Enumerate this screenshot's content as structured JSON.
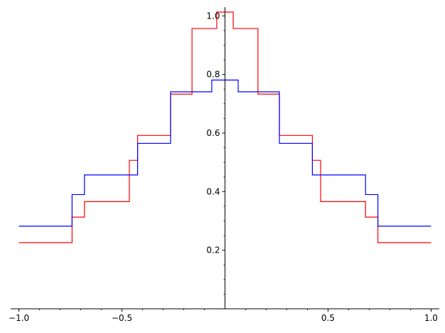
{
  "chart_data": {
    "type": "line",
    "step": true,
    "title": "",
    "xlabel": "",
    "ylabel": "",
    "xlim": [
      -1.04,
      1.04
    ],
    "ylim": [
      0,
      1.03
    ],
    "axes_cross_at": [
      0,
      0
    ],
    "grid": false,
    "legend": "none",
    "x_ticks": [
      {
        "value": -1.0,
        "label": "−1.0"
      },
      {
        "value": -0.5,
        "label": "−0.5"
      },
      {
        "value": 0.5,
        "label": "0.5"
      },
      {
        "value": 1.0,
        "label": "1.0"
      }
    ],
    "x_minor_step": 0.1,
    "y_ticks": [
      {
        "value": 0.2,
        "label": "0.2"
      },
      {
        "value": 0.4,
        "label": "0.4"
      },
      {
        "value": 0.6,
        "label": "0.6"
      },
      {
        "value": 0.8,
        "label": "0.8"
      },
      {
        "value": 1.0,
        "label": "1.0"
      }
    ],
    "y_minor_step": 0.05,
    "series": [
      {
        "color": "#ff0000",
        "x": [
          -1.0,
          -0.742,
          -0.742,
          -0.682,
          -0.682,
          -0.464,
          -0.464,
          -0.424,
          -0.424,
          -0.264,
          -0.264,
          -0.16,
          -0.16,
          -0.04,
          -0.04,
          0.04,
          0.04,
          0.16,
          0.16,
          0.264,
          0.264,
          0.424,
          0.424,
          0.464,
          0.464,
          0.682,
          0.682,
          0.742,
          0.742,
          1.0
        ],
        "y": [
          0.226,
          0.226,
          0.313,
          0.313,
          0.366,
          0.366,
          0.507,
          0.507,
          0.592,
          0.592,
          0.733,
          0.733,
          0.957,
          0.957,
          1.013,
          1.013,
          0.957,
          0.957,
          0.733,
          0.733,
          0.592,
          0.592,
          0.507,
          0.507,
          0.366,
          0.366,
          0.313,
          0.313,
          0.226,
          0.226
        ]
      },
      {
        "color": "#0000ff",
        "x": [
          -1.0,
          -0.742,
          -0.742,
          -0.682,
          -0.682,
          -0.424,
          -0.424,
          -0.264,
          -0.264,
          -0.064,
          -0.064,
          0.064,
          0.064,
          0.264,
          0.264,
          0.424,
          0.424,
          0.682,
          0.682,
          0.742,
          0.742,
          1.0
        ],
        "y": [
          0.282,
          0.282,
          0.39,
          0.39,
          0.457,
          0.457,
          0.565,
          0.565,
          0.741,
          0.741,
          0.781,
          0.781,
          0.741,
          0.741,
          0.565,
          0.565,
          0.457,
          0.457,
          0.39,
          0.39,
          0.282,
          0.282
        ]
      }
    ]
  }
}
